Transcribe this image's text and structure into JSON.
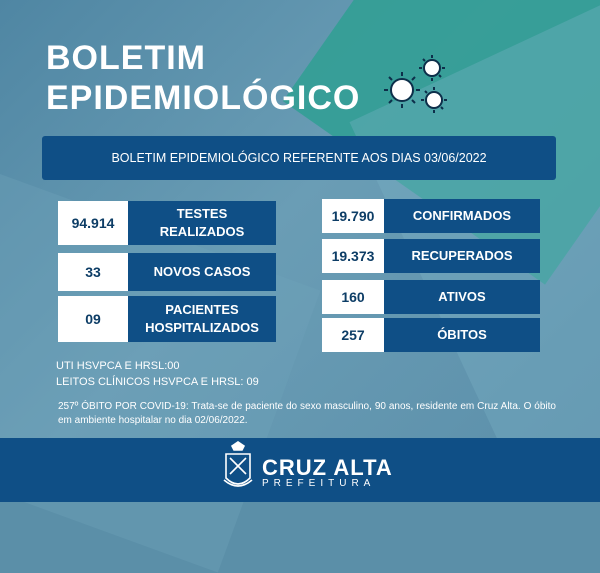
{
  "title": {
    "line1": "BOLETIM",
    "line2": "EPIDEMIOLÓGICO"
  },
  "banner": "BOLETIM EPIDEMIOLÓGICO REFERENTE AOS DIAS 03/06/2022",
  "left_stats": [
    {
      "value": "94.914",
      "label_line1": "TESTES",
      "label_line2": "REALIZADOS"
    },
    {
      "value": "33",
      "label_line1": "NOVOS CASOS",
      "label_line2": ""
    },
    {
      "value": "09",
      "label_line1": "PACIENTES",
      "label_line2": "HOSPITALIZADOS"
    }
  ],
  "right_stats": [
    {
      "value": "19.790",
      "label": "CONFIRMADOS"
    },
    {
      "value": "19.373",
      "label": "RECUPERADOS"
    },
    {
      "value": "160",
      "label": "ATIVOS"
    },
    {
      "value": "257",
      "label": "ÓBITOS"
    }
  ],
  "uti": {
    "line1": "UTI HSVPCA E HRSL:00",
    "line2": "LEITOS CLÍNICOS HSVPCA E HRSL: 09"
  },
  "note": "257º ÓBITO POR COVID-19: Trata-se de paciente do sexo masculino, 90 anos, residente em Cruz Alta. O óbito em ambiente hospitalar no dia 02/06/2022.",
  "footer": {
    "brand": "CRUZ ALTA",
    "sub": "PREFEITURA"
  },
  "colors": {
    "panel": "#0f4f86",
    "teal": "#2f9f93",
    "text_dark": "#0d3d66"
  }
}
